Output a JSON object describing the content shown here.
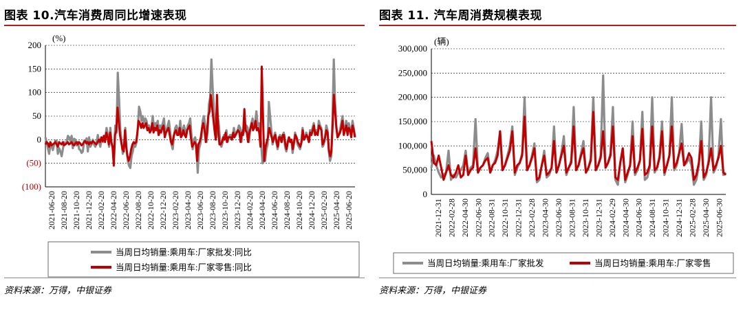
{
  "colors": {
    "wholesale": "#8c8c8c",
    "retail": "#c00000",
    "title_rule": "#b51c1c"
  },
  "panels": [
    {
      "title": "图表 10.汽车消费周同比增速表现",
      "source": "资料来源：万得，中银证券",
      "chart_data": {
        "type": "line",
        "ylabel": "(%)",
        "ylim": [
          -100,
          200
        ],
        "yticks": [
          200,
          150,
          100,
          50,
          0,
          -50,
          -100
        ],
        "ytick_labels": [
          "200",
          "150",
          "100",
          "50",
          "0",
          "(50)",
          "(100)"
        ],
        "negative_tick_color": "#c00000",
        "xlabels": [
          "2021-06-20",
          "2021-08-20",
          "2021-10-20",
          "2021-12-20",
          "2022-02-20",
          "2022-04-20",
          "2022-06-20",
          "2022-08-20",
          "2022-10-20",
          "2022-12-20",
          "2023-02-20",
          "2023-04-20",
          "2023-06-20",
          "2023-08-20",
          "2023-10-20",
          "2023-12-20",
          "2024-02-20",
          "2024-04-20",
          "2024-06-20",
          "2024-08-20",
          "2024-10-20",
          "2024-12-20",
          "2025-02-20",
          "2025-04-20",
          "2025-06-20"
        ],
        "grid": true,
        "legend_placement": "bottom",
        "series": [
          {
            "name": "当周日均销量:乘用车:厂家批发:同比",
            "color": "#8c8c8c",
            "values": [
              5,
              -5,
              -18,
              -30,
              -10,
              -15,
              -22,
              -10,
              -2,
              -3,
              -30,
              -18,
              -25,
              -35,
              -20,
              -5,
              -10,
              -5,
              8,
              5,
              -3,
              8,
              -18,
              2,
              0,
              -12,
              -5,
              -20,
              -22,
              -28,
              -25,
              -2,
              -5,
              3,
              -25,
              5,
              -15,
              -10,
              0,
              -10,
              -15,
              -5,
              10,
              -5,
              -15,
              5,
              -5,
              8,
              5,
              25,
              10,
              -15,
              25,
              -8,
              -20,
              -25,
              30,
              15,
              142,
              85,
              20,
              -5,
              -30,
              -15,
              25,
              -20,
              -45,
              -55,
              -60,
              -35,
              -25,
              -10,
              -15,
              -5,
              25,
              70,
              60,
              40,
              50,
              35,
              45,
              40,
              25,
              30,
              20,
              25,
              50,
              20,
              35,
              30,
              40,
              10,
              30,
              25,
              35,
              45,
              10,
              20,
              30,
              40,
              15,
              -10,
              -20,
              10,
              25,
              30,
              20,
              15,
              40,
              10,
              20,
              30,
              20,
              10,
              30,
              35,
              45,
              10,
              -20,
              0,
              5,
              -15,
              -70,
              -20,
              -10,
              5,
              40,
              50,
              30,
              -5,
              20,
              75,
              90,
              170,
              110,
              60,
              30,
              5,
              50,
              30,
              -5,
              -15,
              -5,
              10,
              5,
              20,
              -5,
              5,
              10,
              10,
              5,
              25,
              10,
              15,
              20,
              30,
              25,
              -5,
              20,
              15,
              30,
              30,
              25,
              -5,
              20,
              35,
              45,
              25,
              35,
              60,
              30,
              35,
              20,
              -15,
              -50,
              -45,
              -45,
              -20,
              -10,
              80,
              50,
              20,
              -10,
              5,
              15,
              -5,
              -20,
              5,
              10,
              -5,
              10,
              15,
              -15,
              -25,
              -5,
              5,
              -5,
              0,
              -28,
              -10,
              15,
              5,
              -10,
              -15,
              -20,
              -5,
              25,
              0,
              5,
              15,
              5,
              -5,
              20,
              15,
              25,
              35,
              10,
              20,
              15,
              40,
              30,
              25,
              -15,
              -10,
              5,
              30,
              20,
              -25,
              -45,
              -35,
              40,
              170,
              80,
              30,
              5,
              10,
              20,
              35,
              50,
              15,
              25,
              40,
              15,
              35,
              25,
              10,
              40,
              25,
              5
            ]
          },
          {
            "name": "当周日均销量:乘用车:厂家零售:同比",
            "color": "#c00000",
            "values": [
              -10,
              -5,
              -8,
              -15,
              -5,
              -12,
              -10,
              -8,
              -5,
              -10,
              -15,
              -5,
              -8,
              -10,
              -5,
              -12,
              -10,
              -8,
              -5,
              -10,
              -8,
              -5,
              -10,
              -12,
              -8,
              -5,
              -10,
              -5,
              -8,
              -12,
              -10,
              -5,
              -3,
              -8,
              -5,
              -10,
              -5,
              -8,
              -3,
              -5,
              -8,
              -10,
              -5,
              0,
              -5,
              5,
              -3,
              8,
              -5,
              15,
              5,
              -10,
              15,
              -5,
              -15,
              -55,
              10,
              20,
              68,
              40,
              10,
              -5,
              -20,
              -25,
              20,
              -15,
              -35,
              -45,
              -35,
              -20,
              -10,
              -5,
              -8,
              -5,
              15,
              40,
              35,
              25,
              35,
              25,
              30,
              35,
              20,
              25,
              15,
              20,
              35,
              15,
              25,
              20,
              30,
              10,
              20,
              15,
              25,
              30,
              5,
              15,
              20,
              25,
              10,
              -5,
              -10,
              5,
              15,
              20,
              10,
              10,
              25,
              5,
              10,
              20,
              10,
              5,
              20,
              25,
              30,
              5,
              -15,
              -10,
              -5,
              -10,
              -45,
              -10,
              -5,
              5,
              25,
              35,
              20,
              -5,
              15,
              50,
              60,
              95,
              70,
              45,
              20,
              0,
              95,
              20,
              -10,
              -10,
              -5,
              5,
              0,
              15,
              -5,
              5,
              5,
              5,
              0,
              15,
              5,
              10,
              15,
              20,
              15,
              -5,
              15,
              10,
              65,
              20,
              15,
              -5,
              15,
              25,
              35,
              20,
              25,
              40,
              20,
              25,
              15,
              -15,
              155,
              50,
              -45,
              -15,
              -5,
              5,
              25,
              15,
              5,
              -5,
              5,
              10,
              -5,
              -15,
              5,
              5,
              -5,
              10,
              10,
              -10,
              -20,
              -5,
              5,
              -5,
              0,
              -20,
              -5,
              10,
              5,
              -5,
              -10,
              -15,
              -5,
              20,
              0,
              5,
              10,
              5,
              -5,
              15,
              10,
              20,
              30,
              10,
              15,
              10,
              30,
              25,
              20,
              -10,
              -5,
              5,
              20,
              15,
              -20,
              -35,
              -25,
              30,
              95,
              60,
              25,
              5,
              10,
              15,
              25,
              40,
              10,
              20,
              30,
              10,
              25,
              20,
              5,
              30,
              20,
              5
            ]
          }
        ]
      }
    },
    {
      "title": "图表 11. 汽车周消费规模表现",
      "source": "资料来源：万得，中银证券",
      "chart_data": {
        "type": "line",
        "ylabel": "(辆)",
        "ylim": [
          0,
          300000
        ],
        "yticks": [
          300000,
          250000,
          200000,
          150000,
          100000,
          50000,
          0
        ],
        "ytick_labels": [
          "300,000",
          "250,000",
          "200,000",
          "150,000",
          "100,000",
          "50,000",
          "0"
        ],
        "xlabels": [
          "2021-12-31",
          "2022-02-28",
          "2022-04-30",
          "2022-06-30",
          "2022-08-31",
          "2022-10-31",
          "2022-12-31",
          "2023-02-28",
          "2023-04-30",
          "2023-06-30",
          "2023-08-31",
          "2023-10-31",
          "2023-12-31",
          "2024-02-29",
          "2024-04-30",
          "2024-06-30",
          "2024-08-31",
          "2024-10-31",
          "2024-12-31",
          "2025-02-28",
          "2025-04-30",
          "2025-06-30"
        ],
        "grid": true,
        "legend_placement": "bottom",
        "series": [
          {
            "name": "当周日均销量:乘用车:厂家批发",
            "color": "#8c8c8c",
            "values": [
              55000,
              80000,
              60000,
              45000,
              35000,
              40000,
              45000,
              90000,
              30000,
              40000,
              35000,
              45000,
              50000,
              60000,
              90000,
              40000,
              55000,
              60000,
              155000,
              45000,
              55000,
              60000,
              75000,
              85000,
              45000,
              60000,
              70000,
              90000,
              130000,
              50000,
              60000,
              80000,
              100000,
              140000,
              40000,
              55000,
              65000,
              85000,
              200000,
              50000,
              60000,
              80000,
              105000,
              25000,
              30000,
              60000,
              90000,
              35000,
              40000,
              55000,
              140000,
              45000,
              60000,
              85000,
              120000,
              40000,
              55000,
              70000,
              180000,
              50000,
              60000,
              85000,
              110000,
              45000,
              55000,
              75000,
              200000,
              50000,
              60000,
              80000,
              245000,
              55000,
              65000,
              85000,
              180000,
              30000,
              20000,
              65000,
              95000,
              25000,
              40000,
              60000,
              150000,
              40000,
              50000,
              70000,
              170000,
              30000,
              35000,
              55000,
              200000,
              45000,
              55000,
              80000,
              150000,
              40000,
              60000,
              80000,
              200000,
              50000,
              60000,
              85000,
              145000,
              60000,
              65000,
              75000,
              60000,
              20000,
              30000,
              60000,
              150000,
              30000,
              40000,
              70000,
              200000,
              45000,
              55000,
              80000,
              155000,
              40000,
              45000
            ]
          },
          {
            "name": "当周日均销量:乘用车:厂家零售",
            "color": "#c00000",
            "values": [
              110000,
              65000,
              60000,
              80000,
              55000,
              30000,
              45000,
              60000,
              40000,
              35000,
              45000,
              60000,
              35000,
              40000,
              80000,
              40000,
              50000,
              55000,
              95000,
              45000,
              55000,
              60000,
              70000,
              75000,
              45000,
              60000,
              65000,
              80000,
              130000,
              50000,
              60000,
              75000,
              90000,
              130000,
              45000,
              60000,
              65000,
              80000,
              160000,
              50000,
              60000,
              75000,
              95000,
              30000,
              35000,
              60000,
              80000,
              40000,
              45000,
              55000,
              110000,
              45000,
              60000,
              80000,
              100000,
              45000,
              55000,
              65000,
              140000,
              50000,
              60000,
              80000,
              95000,
              45000,
              55000,
              70000,
              170000,
              50000,
              60000,
              75000,
              130000,
              55000,
              65000,
              80000,
              140000,
              35000,
              30000,
              65000,
              95000,
              30000,
              45000,
              60000,
              120000,
              45000,
              55000,
              70000,
              135000,
              40000,
              45000,
              60000,
              140000,
              50000,
              55000,
              75000,
              130000,
              45000,
              60000,
              80000,
              140000,
              55000,
              65000,
              85000,
              105000,
              60000,
              70000,
              85000,
              75000,
              30000,
              40000,
              65000,
              110000,
              35000,
              45000,
              65000,
              95000,
              50000,
              60000,
              75000,
              100000,
              45000,
              40000
            ]
          }
        ]
      }
    }
  ]
}
